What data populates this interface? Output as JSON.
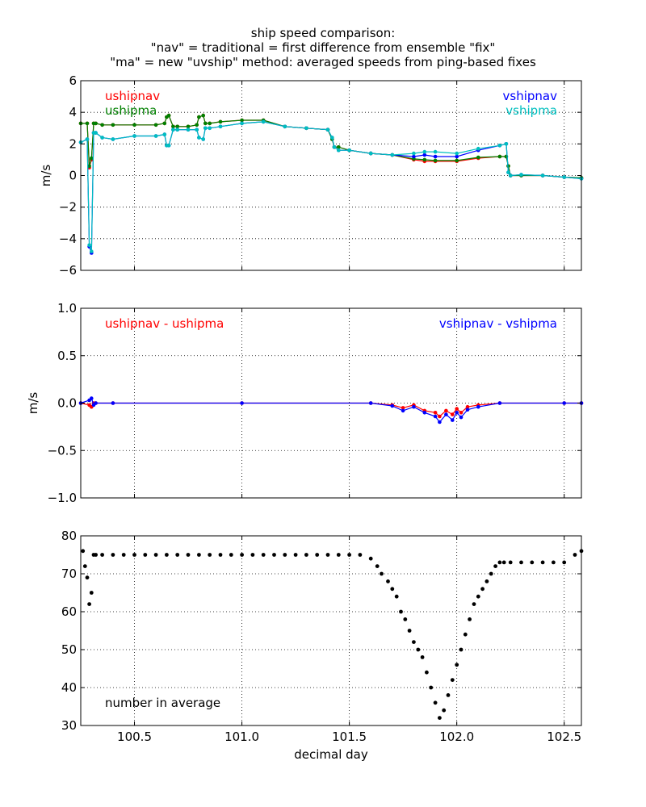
{
  "title_lines": [
    "ship speed comparison:",
    "\"nav\" = traditional = first difference from ensemble \"fix\"",
    "\"ma\" = new \"uvship\" method: averaged speeds from ping-based fixes"
  ],
  "xlabel": "decimal day",
  "x_ticks": [
    "100.5",
    "101.0",
    "101.5",
    "102.0",
    "102.5"
  ],
  "colors": {
    "red": "#ff0000",
    "green": "#008000",
    "blue": "#0000ff",
    "cyan": "#00bfbf",
    "black": "#000000"
  },
  "chart_data": [
    {
      "type": "line",
      "panel": "speeds",
      "ylabel": "m/s",
      "xlim": [
        100.25,
        102.58
      ],
      "ylim": [
        -6,
        6
      ],
      "y_ticks": [
        "−6",
        "−4",
        "−2",
        "0",
        "2",
        "4",
        "6"
      ],
      "grid": true,
      "legend": [
        {
          "name": "ushipnav",
          "color": "#ff0000",
          "position": "top-left"
        },
        {
          "name": "ushipma",
          "color": "#008000",
          "position": "top-left"
        },
        {
          "name": "vshipnav",
          "color": "#0000ff",
          "position": "top-right"
        },
        {
          "name": "vshipma",
          "color": "#00bfbf",
          "position": "top-right"
        }
      ],
      "series": [
        {
          "name": "ushipnav",
          "color": "#ff0000",
          "x": [
            100.25,
            100.28,
            100.29,
            100.3,
            100.31,
            100.32,
            100.35,
            100.4,
            100.5,
            100.6,
            100.64,
            100.65,
            100.66,
            100.68,
            100.7,
            100.75,
            100.79,
            100.8,
            100.82,
            100.83,
            100.85,
            100.9,
            101.0,
            101.1,
            101.2,
            101.3,
            101.4,
            101.42,
            101.43,
            101.45,
            101.5,
            101.6,
            101.7,
            101.8,
            101.85,
            101.9,
            102.0,
            102.1,
            102.2,
            102.23,
            102.24,
            102.25,
            102.3,
            102.4,
            102.5,
            102.58
          ],
          "y": [
            3.3,
            3.3,
            0.5,
            1.0,
            3.3,
            3.3,
            3.2,
            3.2,
            3.2,
            3.2,
            3.3,
            3.7,
            3.8,
            3.1,
            3.1,
            3.1,
            3.2,
            3.7,
            3.8,
            3.3,
            3.3,
            3.4,
            3.5,
            3.5,
            3.1,
            3.0,
            2.9,
            2.3,
            1.8,
            1.8,
            1.6,
            1.4,
            1.3,
            1.0,
            0.9,
            0.9,
            0.9,
            1.1,
            1.2,
            1.2,
            0.6,
            0.0,
            0.0,
            0.0,
            -0.1,
            -0.15
          ]
        },
        {
          "name": "ushipma",
          "color": "#008000",
          "x": [
            100.25,
            100.28,
            100.29,
            100.3,
            100.31,
            100.32,
            100.35,
            100.4,
            100.5,
            100.6,
            100.64,
            100.65,
            100.66,
            100.68,
            100.7,
            100.75,
            100.79,
            100.8,
            100.82,
            100.83,
            100.85,
            100.9,
            101.0,
            101.1,
            101.2,
            101.3,
            101.4,
            101.42,
            101.43,
            101.45,
            101.5,
            101.6,
            101.7,
            101.8,
            101.85,
            101.9,
            102.0,
            102.1,
            102.2,
            102.23,
            102.24,
            102.25,
            102.3,
            102.4,
            102.5,
            102.58
          ],
          "y": [
            3.3,
            3.3,
            0.6,
            1.1,
            3.3,
            3.3,
            3.2,
            3.2,
            3.2,
            3.2,
            3.3,
            3.7,
            3.8,
            3.1,
            3.1,
            3.1,
            3.2,
            3.7,
            3.8,
            3.3,
            3.3,
            3.4,
            3.5,
            3.5,
            3.1,
            3.0,
            2.9,
            2.3,
            1.8,
            1.8,
            1.6,
            1.4,
            1.3,
            1.05,
            1.0,
            0.95,
            0.95,
            1.15,
            1.2,
            1.2,
            0.6,
            0.0,
            0.0,
            0.0,
            -0.1,
            -0.15
          ]
        },
        {
          "name": "vshipnav",
          "color": "#0000ff",
          "x": [
            100.25,
            100.28,
            100.29,
            100.3,
            100.31,
            100.32,
            100.35,
            100.4,
            100.5,
            100.6,
            100.64,
            100.65,
            100.66,
            100.68,
            100.7,
            100.75,
            100.79,
            100.8,
            100.82,
            100.83,
            100.85,
            100.9,
            101.0,
            101.1,
            101.2,
            101.3,
            101.4,
            101.42,
            101.43,
            101.45,
            101.5,
            101.6,
            101.7,
            101.8,
            101.85,
            101.9,
            102.0,
            102.1,
            102.2,
            102.23,
            102.24,
            102.25,
            102.3,
            102.4,
            102.5,
            102.58
          ],
          "y": [
            2.1,
            2.3,
            -4.5,
            -4.9,
            2.7,
            2.7,
            2.4,
            2.3,
            2.5,
            2.5,
            2.6,
            1.9,
            1.9,
            2.9,
            2.9,
            2.9,
            2.9,
            2.4,
            2.3,
            3.0,
            3.0,
            3.1,
            3.3,
            3.4,
            3.1,
            3.0,
            2.9,
            2.4,
            1.8,
            1.6,
            1.6,
            1.4,
            1.3,
            1.2,
            1.3,
            1.2,
            1.2,
            1.6,
            1.9,
            2.0,
            0.2,
            0.0,
            0.05,
            0.0,
            -0.1,
            -0.2
          ]
        },
        {
          "name": "vshipma",
          "color": "#00bfbf",
          "x": [
            100.25,
            100.28,
            100.29,
            100.3,
            100.31,
            100.32,
            100.35,
            100.4,
            100.5,
            100.6,
            100.64,
            100.65,
            100.66,
            100.68,
            100.7,
            100.75,
            100.79,
            100.8,
            100.82,
            100.83,
            100.85,
            100.9,
            101.0,
            101.1,
            101.2,
            101.3,
            101.4,
            101.42,
            101.43,
            101.45,
            101.5,
            101.6,
            101.7,
            101.8,
            101.85,
            101.9,
            102.0,
            102.1,
            102.2,
            102.23,
            102.24,
            102.25,
            102.3,
            102.4,
            102.5,
            102.58
          ],
          "y": [
            2.1,
            2.3,
            -4.4,
            -4.8,
            2.7,
            2.7,
            2.4,
            2.3,
            2.5,
            2.5,
            2.6,
            1.9,
            1.9,
            2.9,
            2.9,
            2.9,
            2.9,
            2.4,
            2.3,
            3.0,
            3.0,
            3.1,
            3.3,
            3.4,
            3.1,
            3.0,
            2.9,
            2.4,
            1.8,
            1.6,
            1.6,
            1.4,
            1.3,
            1.4,
            1.5,
            1.5,
            1.4,
            1.7,
            1.9,
            2.0,
            0.2,
            0.0,
            0.05,
            0.0,
            -0.1,
            -0.2
          ]
        }
      ]
    },
    {
      "type": "line",
      "panel": "differences",
      "ylabel": "m/s",
      "xlim": [
        100.25,
        102.58
      ],
      "ylim": [
        -1.0,
        1.0
      ],
      "y_ticks": [
        "−1.0",
        "−0.5",
        "0.0",
        "0.5",
        "1.0"
      ],
      "grid": true,
      "legend": [
        {
          "name": "ushipnav - ushipma",
          "color": "#ff0000",
          "position": "top-left"
        },
        {
          "name": "vshipnav - vshipma",
          "color": "#0000ff",
          "position": "top-right"
        }
      ],
      "series": [
        {
          "name": "ushipnav - ushipma",
          "color": "#ff0000",
          "x": [
            100.25,
            100.29,
            100.3,
            100.31,
            100.32,
            100.4,
            101.0,
            101.6,
            101.7,
            101.75,
            101.8,
            101.85,
            101.9,
            101.92,
            101.95,
            101.98,
            102.0,
            102.02,
            102.05,
            102.1,
            102.2,
            102.5,
            102.58
          ],
          "y": [
            0.0,
            -0.02,
            -0.04,
            0.0,
            0.0,
            0.0,
            0.0,
            0.0,
            -0.02,
            -0.05,
            -0.02,
            -0.08,
            -0.1,
            -0.14,
            -0.08,
            -0.12,
            -0.06,
            -0.1,
            -0.04,
            -0.02,
            0.0,
            0.0,
            0.0
          ]
        },
        {
          "name": "vshipnav - vshipma",
          "color": "#0000ff",
          "x": [
            100.25,
            100.29,
            100.3,
            100.31,
            100.32,
            100.4,
            101.0,
            101.6,
            101.7,
            101.75,
            101.8,
            101.85,
            101.9,
            101.92,
            101.95,
            101.98,
            102.0,
            102.02,
            102.05,
            102.1,
            102.2,
            102.5,
            102.58
          ],
          "y": [
            0.0,
            0.03,
            0.05,
            -0.02,
            0.0,
            0.0,
            0.0,
            0.0,
            -0.03,
            -0.08,
            -0.04,
            -0.1,
            -0.14,
            -0.2,
            -0.12,
            -0.18,
            -0.1,
            -0.15,
            -0.07,
            -0.04,
            0.0,
            0.0,
            0.0
          ]
        }
      ]
    },
    {
      "type": "scatter",
      "panel": "count",
      "xlim": [
        100.25,
        102.58
      ],
      "ylim": [
        30,
        80
      ],
      "y_ticks": [
        "30",
        "40",
        "50",
        "60",
        "70",
        "80"
      ],
      "grid": true,
      "annotation": "number in average",
      "series": [
        {
          "name": "",
          "color": "#000000",
          "x": [
            100.26,
            100.27,
            100.28,
            100.29,
            100.3,
            100.31,
            100.32,
            100.35,
            100.4,
            100.45,
            100.5,
            100.55,
            100.6,
            100.65,
            100.7,
            100.75,
            100.8,
            100.85,
            100.9,
            100.95,
            101.0,
            101.05,
            101.1,
            101.15,
            101.2,
            101.25,
            101.3,
            101.35,
            101.4,
            101.45,
            101.5,
            101.55,
            101.6,
            101.63,
            101.65,
            101.68,
            101.7,
            101.72,
            101.74,
            101.76,
            101.78,
            101.8,
            101.82,
            101.84,
            101.86,
            101.88,
            101.9,
            101.92,
            101.94,
            101.96,
            101.98,
            102.0,
            102.02,
            102.04,
            102.06,
            102.08,
            102.1,
            102.12,
            102.14,
            102.16,
            102.18,
            102.2,
            102.22,
            102.25,
            102.3,
            102.35,
            102.4,
            102.45,
            102.5,
            102.55,
            102.58
          ],
          "y": [
            76,
            72,
            69,
            62,
            65,
            75,
            75,
            75,
            75,
            75,
            75,
            75,
            75,
            75,
            75,
            75,
            75,
            75,
            75,
            75,
            75,
            75,
            75,
            75,
            75,
            75,
            75,
            75,
            75,
            75,
            75,
            75,
            74,
            72,
            70,
            68,
            66,
            64,
            60,
            58,
            55,
            52,
            50,
            48,
            44,
            40,
            36,
            32,
            34,
            38,
            42,
            46,
            50,
            54,
            58,
            62,
            64,
            66,
            68,
            70,
            72,
            73,
            73,
            73,
            73,
            73,
            73,
            73,
            73,
            75,
            76
          ]
        }
      ]
    }
  ]
}
